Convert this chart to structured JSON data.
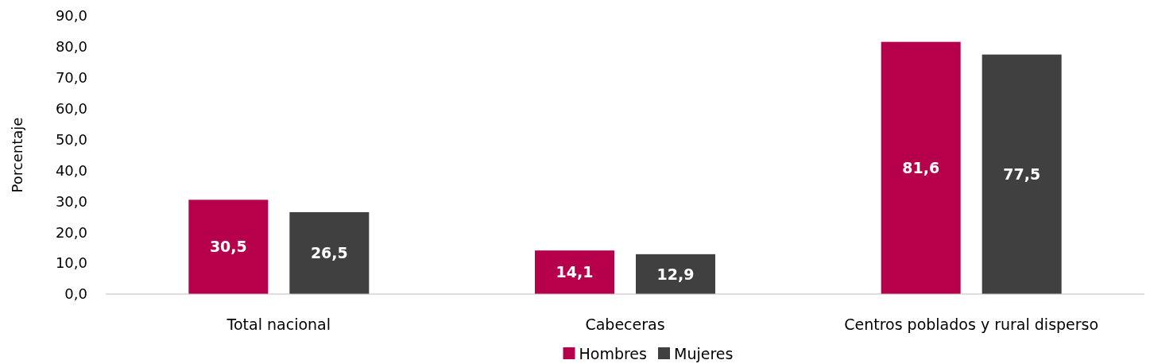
{
  "chart_data": {
    "type": "bar",
    "ylabel": "Porcentaje",
    "categories": [
      "Total nacional",
      "Cabeceras",
      "Centros poblados y rural disperso"
    ],
    "series": [
      {
        "name": "Hombres",
        "color": "#b7004b",
        "values": [
          30.5,
          14.1,
          81.6
        ],
        "value_labels": [
          "30,5",
          "14,1",
          "81,6"
        ]
      },
      {
        "name": "Mujeres",
        "color": "#404040",
        "values": [
          26.5,
          12.9,
          77.5
        ],
        "value_labels": [
          "26,5",
          "12,9",
          "77,5"
        ]
      }
    ],
    "ylim": [
      0,
      90
    ],
    "yticks": [
      {
        "value": 0,
        "label": "0,0"
      },
      {
        "value": 10,
        "label": "10,0"
      },
      {
        "value": 20,
        "label": "20,0"
      },
      {
        "value": 30,
        "label": "30,0"
      },
      {
        "value": 40,
        "label": "40,0"
      },
      {
        "value": 50,
        "label": "50,0"
      },
      {
        "value": 60,
        "label": "60,0"
      },
      {
        "value": 70,
        "label": "70,0"
      },
      {
        "value": 80,
        "label": "80,0"
      },
      {
        "value": 90,
        "label": "90,0"
      }
    ],
    "grid": false,
    "legend": "bottom"
  }
}
